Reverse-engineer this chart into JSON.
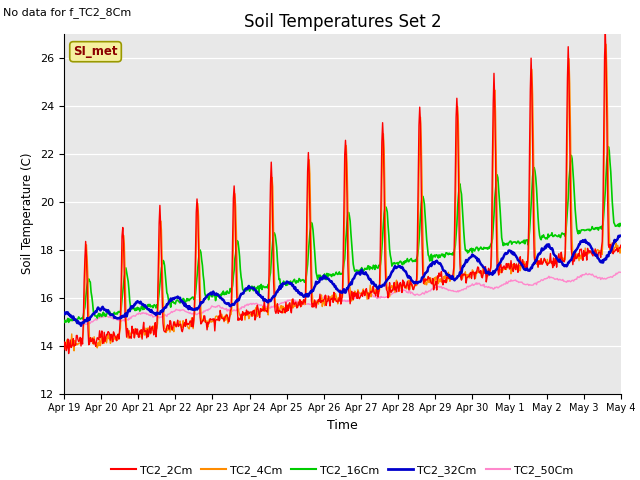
{
  "title": "Soil Temperatures Set 2",
  "xlabel": "Time",
  "ylabel": "Soil Temperature (C)",
  "annotation_text": "No data for f_TC2_8Cm",
  "si_met_label": "SI_met",
  "ylim": [
    12,
    27
  ],
  "yticks": [
    12,
    14,
    16,
    18,
    20,
    22,
    24,
    26
  ],
  "series_colors": {
    "TC2_2Cm": "#ff0000",
    "TC2_4Cm": "#ff8c00",
    "TC2_16Cm": "#00cc00",
    "TC2_32Cm": "#0000cc",
    "TC2_50Cm": "#ff88cc"
  },
  "line_widths": {
    "TC2_2Cm": 1.0,
    "TC2_4Cm": 1.0,
    "TC2_16Cm": 1.2,
    "TC2_32Cm": 1.8,
    "TC2_50Cm": 1.0
  },
  "fig_bg": "#ffffff",
  "plot_bg": "#e8e8e8"
}
